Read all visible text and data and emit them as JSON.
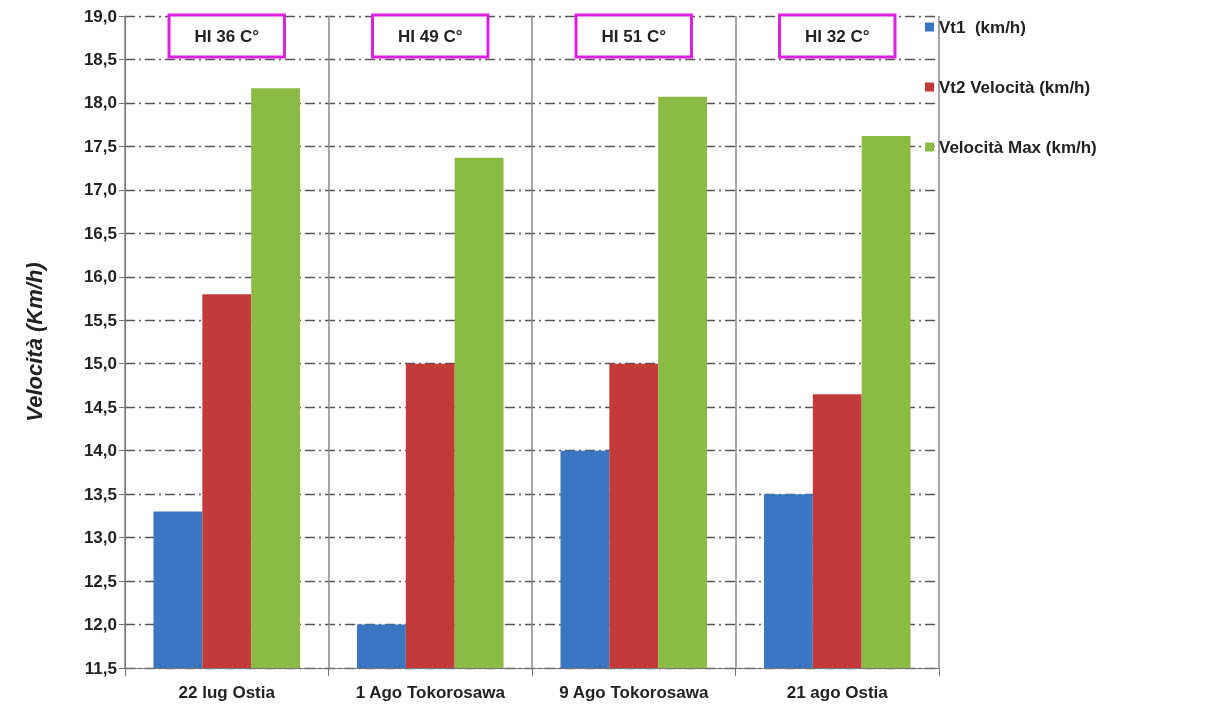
{
  "chart_data": {
    "type": "bar",
    "ylabel": "Velocità (Km/h)",
    "categories": [
      "22 lug Ostia",
      "1 Ago Tokorosawa",
      "9 Ago Tokorosawa",
      "21 ago Ostia"
    ],
    "series": [
      {
        "name": "Vt1  (km/h)",
        "color": "#3b76c2",
        "values": [
          13.3,
          12.0,
          14.0,
          13.5
        ]
      },
      {
        "name": "Vt2 Velocità (km/h)",
        "color": "#c23b3a",
        "values": [
          15.8,
          15.0,
          15.0,
          14.65
        ]
      },
      {
        "name": "Velocità Max (km/h)",
        "color": "#8cbb45",
        "values": [
          18.17,
          17.37,
          18.07,
          17.62
        ]
      }
    ],
    "ylim": [
      11.5,
      19.0
    ],
    "yticks": [
      {
        "value": 11.5,
        "label": "11,5"
      },
      {
        "value": 12,
        "label": "12,0"
      },
      {
        "value": 12.5,
        "label": "12,5"
      },
      {
        "value": 13,
        "label": "13,0"
      },
      {
        "value": 13.5,
        "label": "13,5"
      },
      {
        "value": 14,
        "label": "14,0"
      },
      {
        "value": 14.5,
        "label": "14,5"
      },
      {
        "value": 15,
        "label": "15,0"
      },
      {
        "value": 15.5,
        "label": "15,5"
      },
      {
        "value": 16,
        "label": "16,0"
      },
      {
        "value": 16.5,
        "label": "16,5"
      },
      {
        "value": 17,
        "label": "17,0"
      },
      {
        "value": 17.5,
        "label": "17,5"
      },
      {
        "value": 18,
        "label": "18,0"
      },
      {
        "value": 18.5,
        "label": "18,5"
      },
      {
        "value": 19,
        "label": "19,0"
      }
    ],
    "annotations": [
      "HI 36 C°",
      "HI 49 C°",
      "HI 51 C°",
      "HI 32 C°"
    ],
    "grid": true,
    "legend": "top right"
  }
}
